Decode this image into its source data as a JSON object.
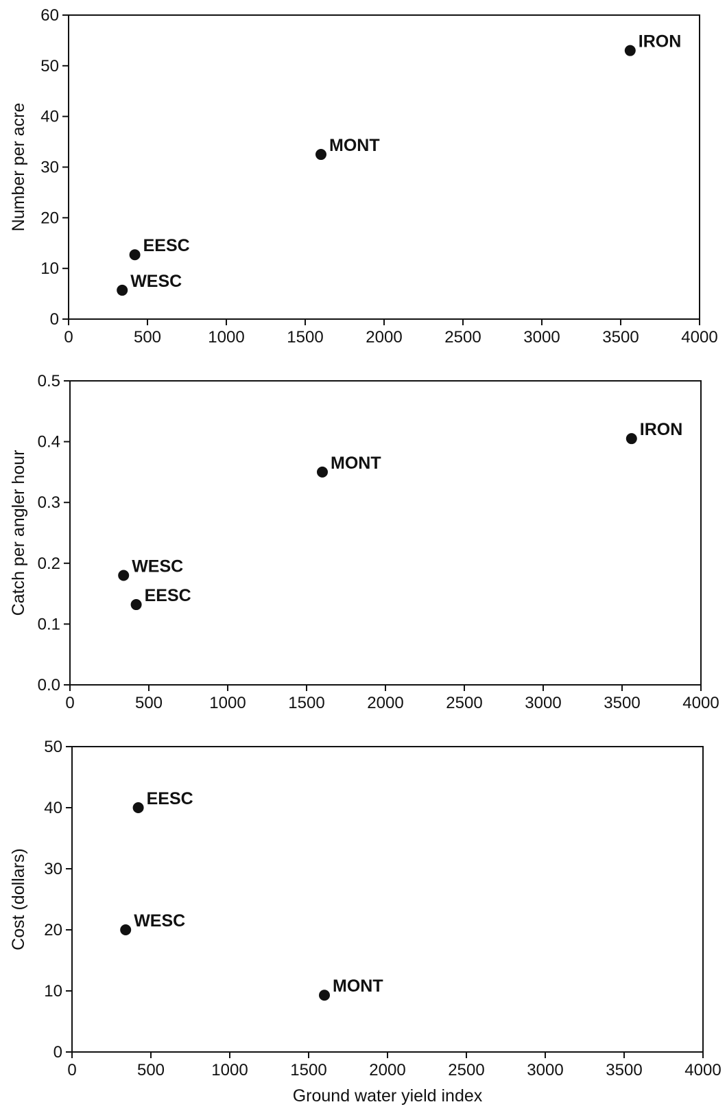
{
  "chart_data": [
    {
      "type": "scatter",
      "xlabel": "",
      "ylabel": "Number per acre",
      "xlim": [
        0,
        4000
      ],
      "ylim": [
        0,
        60
      ],
      "xticks": [
        "0",
        "500",
        "1000",
        "1500",
        "2000",
        "2500",
        "3000",
        "3500",
        "4000"
      ],
      "yticks": [
        "0",
        "10",
        "20",
        "30",
        "40",
        "50",
        "60"
      ],
      "points": [
        {
          "label": "IRON",
          "x": 3560,
          "y": 53
        },
        {
          "label": "MONT",
          "x": 1600,
          "y": 32.5
        },
        {
          "label": "EESC",
          "x": 420,
          "y": 12.7
        },
        {
          "label": "WESC",
          "x": 340,
          "y": 5.7
        }
      ]
    },
    {
      "type": "scatter",
      "xlabel": "",
      "ylabel": "Catch per angler hour",
      "xlim": [
        0,
        4000
      ],
      "ylim": [
        0,
        0.5
      ],
      "xticks": [
        "0",
        "500",
        "1000",
        "1500",
        "2000",
        "2500",
        "3000",
        "3500",
        "4000"
      ],
      "yticks": [
        "0.0",
        "0.1",
        "0.2",
        "0.3",
        "0.4",
        "0.5"
      ],
      "points": [
        {
          "label": "IRON",
          "x": 3560,
          "y": 0.405
        },
        {
          "label": "MONT",
          "x": 1600,
          "y": 0.35
        },
        {
          "label": "WESC",
          "x": 340,
          "y": 0.18
        },
        {
          "label": "EESC",
          "x": 420,
          "y": 0.132
        }
      ]
    },
    {
      "type": "scatter",
      "xlabel": "Ground water yield index",
      "ylabel": "Cost (dollars)",
      "xlim": [
        0,
        4000
      ],
      "ylim": [
        0,
        50
      ],
      "xticks": [
        "0",
        "500",
        "1000",
        "1500",
        "2000",
        "2500",
        "3000",
        "3500",
        "4000"
      ],
      "yticks": [
        "0",
        "10",
        "20",
        "30",
        "40",
        "50"
      ],
      "points": [
        {
          "label": "EESC",
          "x": 420,
          "y": 40
        },
        {
          "label": "WESC",
          "x": 340,
          "y": 20
        },
        {
          "label": "MONT",
          "x": 1600,
          "y": 9.3
        }
      ]
    }
  ]
}
